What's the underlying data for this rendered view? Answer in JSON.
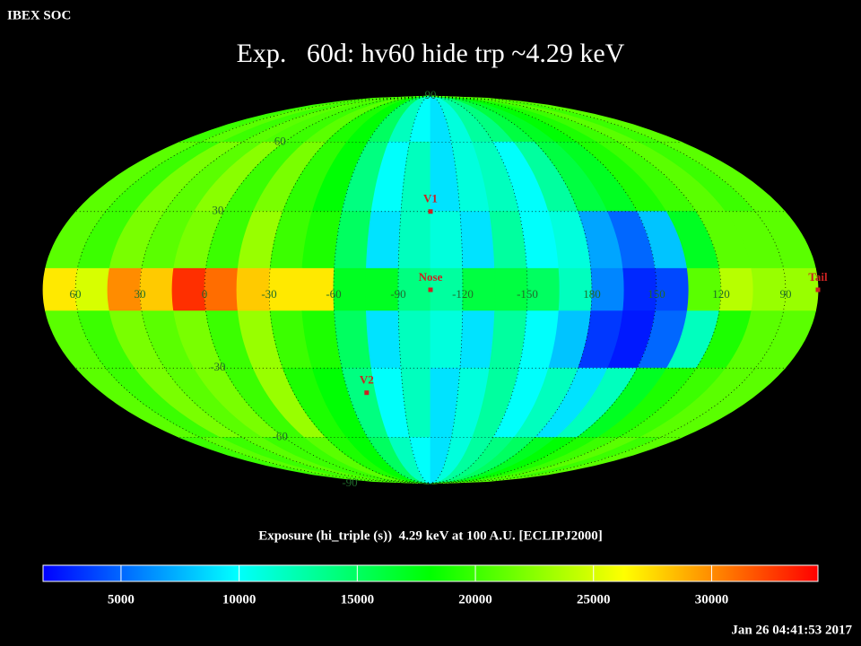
{
  "header": "IBEX SOC",
  "footer": "Jan 26 04:41:53 2017",
  "chart_data": {
    "type": "skymap",
    "projection": "mollweide",
    "title": "Exp.   60d: hv60 hide trp ~4.29 keV",
    "xlim": [
      75,
      -285
    ],
    "ylim": [
      -90,
      90
    ],
    "xticks": [
      60,
      30,
      0,
      -30,
      -60,
      -90,
      -120,
      -150,
      {
        "value": -180,
        "label": "180"
      },
      {
        "value": -210,
        "label": "150"
      },
      {
        "value": -240,
        "label": "120"
      },
      {
        "value": -270,
        "label": "90"
      }
    ],
    "yticks": [
      90,
      60,
      30,
      -30,
      -60,
      -90
    ],
    "grid": true,
    "x_edges": [
      75,
      60,
      45,
      30,
      15,
      0,
      -15,
      -30,
      -45,
      -60,
      -75,
      -90,
      -105,
      -120,
      -135,
      -150,
      -165,
      -180,
      -195,
      -210,
      -225,
      -240,
      -255,
      -270,
      -285
    ],
    "y_edges": [
      90,
      60,
      30,
      8,
      -8,
      -30,
      -60,
      -90
    ],
    "z": [
      [
        20000,
        21000,
        20000,
        21000,
        20500,
        20000,
        21000,
        19000,
        18000,
        15000,
        12000,
        10000,
        9000,
        11000,
        13000,
        14000,
        16000,
        17000,
        18000,
        19000,
        20000,
        21000,
        20000,
        21000
      ],
      [
        21000,
        20000,
        22000,
        21000,
        22500,
        20000,
        22000,
        19500,
        18000,
        14000,
        10000,
        12000,
        9000,
        11000,
        12000,
        10000,
        13000,
        16000,
        17000,
        19000,
        20000,
        21000,
        20000,
        21000
      ],
      [
        21000,
        20000,
        22000,
        21000,
        22000,
        20000,
        23000,
        20000,
        19000,
        15000,
        9000,
        12000,
        11000,
        9000,
        13000,
        10000,
        11000,
        7000,
        5000,
        8000,
        17000,
        21000,
        21000,
        21000
      ],
      [
        27000,
        25000,
        30000,
        28000,
        33000,
        31000,
        28000,
        27000,
        27000,
        17000,
        17000,
        14000,
        13000,
        16000,
        16000,
        15000,
        12000,
        6000,
        3000,
        4000,
        21000,
        24000,
        23000,
        23000
      ],
      [
        21000,
        20000,
        22000,
        21000,
        22000,
        20000,
        23000,
        20000,
        19000,
        15000,
        9000,
        12000,
        11000,
        9000,
        13000,
        10000,
        8000,
        3500,
        2500,
        5000,
        12000,
        19000,
        21000,
        21000
      ],
      [
        21000,
        20000,
        22000,
        21000,
        22000,
        20000,
        23000,
        19000,
        18000,
        14000,
        10000,
        12000,
        9000,
        11000,
        13000,
        10000,
        12000,
        9000,
        12000,
        17000,
        19000,
        20000,
        21000,
        21000
      ],
      [
        20000,
        21000,
        20000,
        21000,
        20000,
        20000,
        21000,
        19000,
        18000,
        15000,
        12000,
        10000,
        9000,
        11000,
        13000,
        14000,
        15000,
        17000,
        18000,
        19000,
        20000,
        21000,
        20000,
        21000
      ]
    ],
    "points": [
      {
        "label": "V1",
        "lon": -105,
        "lat": 30
      },
      {
        "label": "Nose",
        "lon": -105,
        "lat": 0
      },
      {
        "label": "V2",
        "lon": -70,
        "lat": -40
      },
      {
        "label": "Tail",
        "lon": -285,
        "lat": 0
      }
    ],
    "point_color": "#cc2222",
    "tick_color": "#1f6b2a",
    "colorbar": {
      "label": "Exposure (hi_triple (s))  4.29 keV at 100 A.U. [ECLIPJ2000]",
      "clim": [
        1700,
        34500
      ],
      "ticks": [
        5000,
        10000,
        15000,
        20000,
        25000,
        30000
      ],
      "colormap": [
        "#0000ff",
        "#00ffff",
        "#00ff00",
        "#ffff00",
        "#ff0000"
      ]
    }
  }
}
